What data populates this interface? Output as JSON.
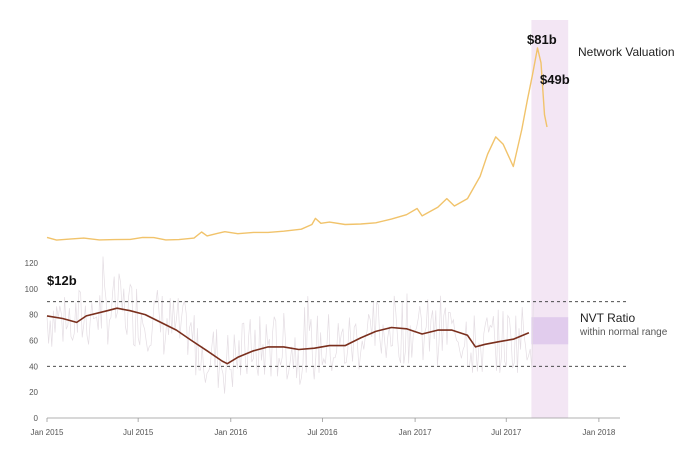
{
  "chart_data": {
    "type": "line",
    "colors": {
      "valuation": "#f1c36b",
      "nvt_smoothed": "#7a2f1d",
      "nvt_raw": "#e4dde3",
      "highlight_band": "#f3e6f4",
      "normal_range_box": "#dcc6eb",
      "normal_range_line": "#333333"
    },
    "y_axis": {
      "ticks": [
        0,
        20,
        40,
        60,
        80,
        100,
        120
      ],
      "range": [
        0,
        130
      ]
    },
    "x_axis": {
      "ticks": [
        "Jan 2015",
        "Jul 2015",
        "Jan 2016",
        "Jul 2016",
        "Jan 2017",
        "Jul 2017",
        "Jan 2018"
      ],
      "range": [
        "2015-01-01",
        "2018-01-31"
      ]
    },
    "normal_range": [
      40,
      90
    ],
    "highlight_period": [
      "2017-08-20",
      "2017-11-01"
    ],
    "annotations": {
      "valuation_start": "$12b",
      "valuation_peak": "$81b",
      "valuation_end": "$49b",
      "valuation_label": "Network Valuation",
      "nvt_label": "NVT Ratio",
      "nvt_sublabel": "within normal range"
    },
    "series": [
      {
        "name": "Network Valuation",
        "unit": "USD billions",
        "points": [
          [
            "2015-01-01",
            4.3
          ],
          [
            "2015-01-20",
            3.2
          ],
          [
            "2015-02-15",
            3.6
          ],
          [
            "2015-03-15",
            4.0
          ],
          [
            "2015-04-15",
            3.3
          ],
          [
            "2015-05-15",
            3.4
          ],
          [
            "2015-06-15",
            3.5
          ],
          [
            "2015-07-10",
            4.3
          ],
          [
            "2015-08-01",
            4.2
          ],
          [
            "2015-08-25",
            3.3
          ],
          [
            "2015-09-20",
            3.4
          ],
          [
            "2015-10-20",
            4.0
          ],
          [
            "2015-11-04",
            6.5
          ],
          [
            "2015-11-15",
            4.9
          ],
          [
            "2015-12-05",
            5.9
          ],
          [
            "2015-12-20",
            6.6
          ],
          [
            "2016-01-15",
            5.8
          ],
          [
            "2016-02-15",
            6.3
          ],
          [
            "2016-03-15",
            6.3
          ],
          [
            "2016-04-15",
            6.8
          ],
          [
            "2016-05-20",
            7.6
          ],
          [
            "2016-06-10",
            9.5
          ],
          [
            "2016-06-17",
            12.0
          ],
          [
            "2016-06-28",
            10.0
          ],
          [
            "2016-07-15",
            10.5
          ],
          [
            "2016-08-15",
            9.5
          ],
          [
            "2016-09-15",
            9.7
          ],
          [
            "2016-10-15",
            10.2
          ],
          [
            "2016-11-15",
            11.7
          ],
          [
            "2016-12-15",
            13.5
          ],
          [
            "2017-01-05",
            16.0
          ],
          [
            "2017-01-15",
            13.0
          ],
          [
            "2017-02-15",
            16.5
          ],
          [
            "2017-03-05",
            20.0
          ],
          [
            "2017-03-20",
            17.0
          ],
          [
            "2017-04-15",
            20.0
          ],
          [
            "2017-05-10",
            29.0
          ],
          [
            "2017-05-25",
            38.0
          ],
          [
            "2017-06-10",
            45.0
          ],
          [
            "2017-06-25",
            42.0
          ],
          [
            "2017-07-15",
            33.0
          ],
          [
            "2017-08-01",
            48.0
          ],
          [
            "2017-08-12",
            60.0
          ],
          [
            "2017-08-22",
            70.0
          ],
          [
            "2017-09-01",
            81.0
          ],
          [
            "2017-09-08",
            75.0
          ],
          [
            "2017-09-15",
            54.0
          ],
          [
            "2017-09-20",
            49.0
          ]
        ]
      },
      {
        "name": "NVT Ratio",
        "smoothed_points": [
          [
            "2015-01-01",
            79
          ],
          [
            "2015-02-01",
            77
          ],
          [
            "2015-03-01",
            74
          ],
          [
            "2015-03-20",
            79
          ],
          [
            "2015-05-01",
            83
          ],
          [
            "2015-05-20",
            85
          ],
          [
            "2015-06-15",
            83
          ],
          [
            "2015-07-15",
            80
          ],
          [
            "2015-08-15",
            74
          ],
          [
            "2015-09-15",
            68
          ],
          [
            "2015-10-15",
            60
          ],
          [
            "2015-11-15",
            52
          ],
          [
            "2015-12-15",
            44
          ],
          [
            "2015-12-25",
            42
          ],
          [
            "2016-01-15",
            47
          ],
          [
            "2016-02-15",
            52
          ],
          [
            "2016-03-15",
            55
          ],
          [
            "2016-04-15",
            55
          ],
          [
            "2016-05-15",
            53
          ],
          [
            "2016-06-15",
            54
          ],
          [
            "2016-07-15",
            56
          ],
          [
            "2016-08-15",
            56
          ],
          [
            "2016-09-15",
            62
          ],
          [
            "2016-10-15",
            67
          ],
          [
            "2016-11-15",
            70
          ],
          [
            "2016-12-15",
            69
          ],
          [
            "2017-01-15",
            65
          ],
          [
            "2017-02-15",
            68
          ],
          [
            "2017-03-15",
            68
          ],
          [
            "2017-04-15",
            64
          ],
          [
            "2017-05-01",
            55
          ],
          [
            "2017-05-20",
            57
          ],
          [
            "2017-06-15",
            59
          ],
          [
            "2017-07-15",
            61
          ],
          [
            "2017-08-15",
            66
          ]
        ]
      }
    ]
  }
}
